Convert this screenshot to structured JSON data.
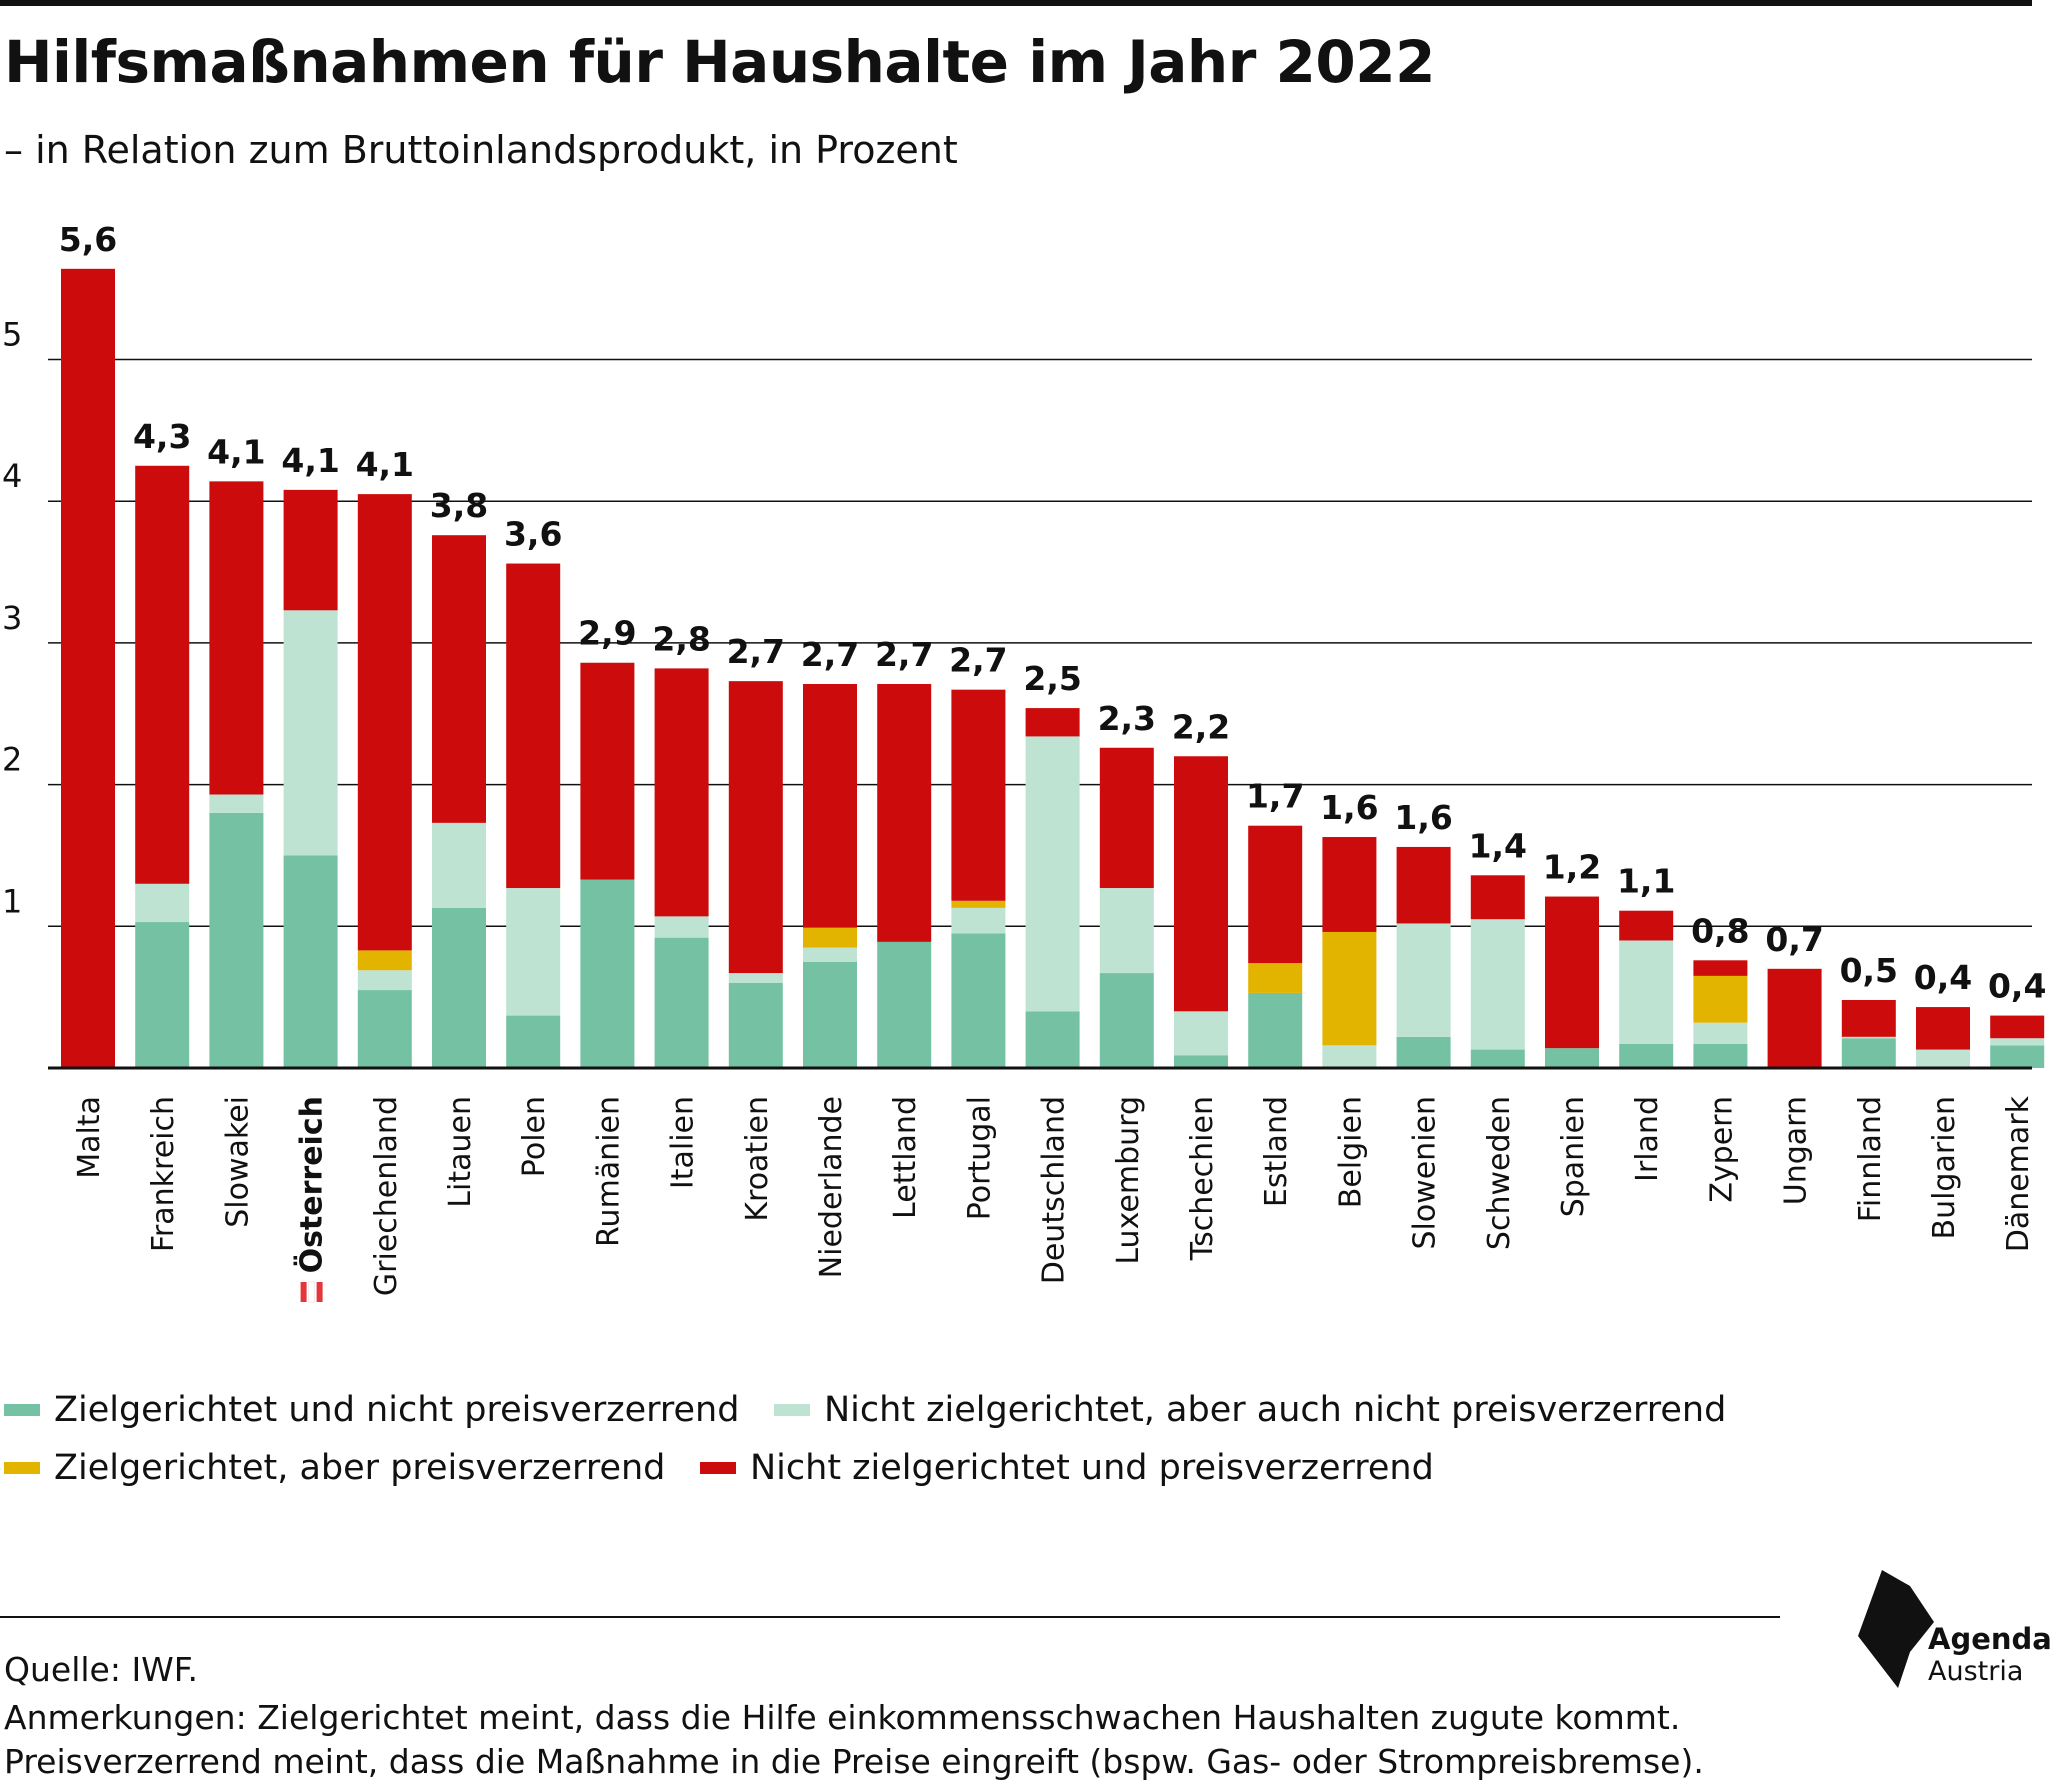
{
  "title": "Hilfsmaßnahmen für Haushalte im Jahr 2022",
  "subtitle": "– in Relation zum Bruttoinlandsprodukt, in Prozent",
  "colors": {
    "targeted_not_distorting": "#74c2a3",
    "not_targeted_not_distorting": "#bfe3d3",
    "targeted_distorting": "#e2b400",
    "not_targeted_distorting": "#cc0c0c",
    "austria_flag_red": "#e4373c"
  },
  "chart_data": {
    "type": "bar",
    "stacked": true,
    "categories": [
      "Malta",
      "Frankreich",
      "Slowakei",
      "Österreich",
      "Griechenland",
      "Litauen",
      "Polen",
      "Rumänien",
      "Italien",
      "Kroatien",
      "Niederlande",
      "Lettland",
      "Portugal",
      "Deutschland",
      "Luxemburg",
      "Tschechien",
      "Estland",
      "Belgien",
      "Slowenien",
      "Schweden",
      "Spanien",
      "Irland",
      "Zypern",
      "Ungarn",
      "Finnland",
      "Bulgarien",
      "Dänemark"
    ],
    "highlight_category": "Österreich",
    "totals": [
      "5,6",
      "4,3",
      "4,1",
      "4,1",
      "4,1",
      "3,8",
      "3,6",
      "2,9",
      "2,8",
      "2,7",
      "2,7",
      "2,7",
      "2,7",
      "2,5",
      "2,3",
      "2,2",
      "1,7",
      "1,6",
      "1,6",
      "1,4",
      "1,2",
      "1,1",
      "0,8",
      "0,7",
      "0,5",
      "0,4",
      "0,4"
    ],
    "series": [
      {
        "name": "Zielgerichtet und nicht preisverzerrend",
        "color": "#74c2a3",
        "values": [
          0,
          1.03,
          1.8,
          1.5,
          0.55,
          1.13,
          0.37,
          1.33,
          0.92,
          0.6,
          0.75,
          0.89,
          0.95,
          0.4,
          0.67,
          0.09,
          0.53,
          0,
          0.22,
          0.13,
          0.14,
          0.17,
          0.17,
          0,
          0.21,
          0,
          0.16
        ]
      },
      {
        "name": "Nicht zielgerichtet, aber auch nicht preisverzerrend",
        "color": "#bfe3d3",
        "values": [
          0,
          0.27,
          0.13,
          1.73,
          0.14,
          0.6,
          0.9,
          0,
          0.15,
          0.07,
          0.1,
          0,
          0.18,
          1.94,
          0.6,
          0.31,
          0,
          0.16,
          0.8,
          0.92,
          0,
          0.73,
          0.15,
          0,
          0.01,
          0.13,
          0.05
        ]
      },
      {
        "name": "Zielgerichtet, aber preisverzerrend",
        "color": "#e2b400",
        "values": [
          0,
          0,
          0,
          0,
          0.14,
          0,
          0,
          0,
          0,
          0,
          0.14,
          0,
          0.05,
          0,
          0,
          0,
          0.21,
          0.8,
          0,
          0,
          0,
          0,
          0.33,
          0,
          0,
          0,
          0
        ]
      },
      {
        "name": "Nicht zielgerichtet und preisverzerrend",
        "color": "#cc0c0c",
        "values": [
          5.64,
          2.95,
          2.21,
          0.85,
          3.22,
          2.03,
          2.29,
          1.53,
          1.75,
          2.06,
          1.72,
          1.82,
          1.49,
          0.2,
          0.99,
          1.8,
          0.97,
          0.67,
          0.54,
          0.31,
          1.07,
          0.21,
          0.11,
          0.7,
          0.26,
          0.3,
          0.16
        ]
      }
    ],
    "y_ticks": [
      "1",
      "2",
      "3",
      "4",
      "5"
    ],
    "ylim": [
      0,
      5.6
    ],
    "grid": true
  },
  "footer": {
    "source": "Quelle: IWF.",
    "note_line1": "Anmerkungen: Zielgerichtet meint, dass die Hilfe einkommensschwachen Haushalten zugute kommt.",
    "note_line2": "Preisverzerrend meint, dass die Maßnahme in die Preise eingreift (bspw. Gas- oder Strompreisbremse)."
  },
  "logo": {
    "line1": "Agenda",
    "line2": "Austria"
  }
}
